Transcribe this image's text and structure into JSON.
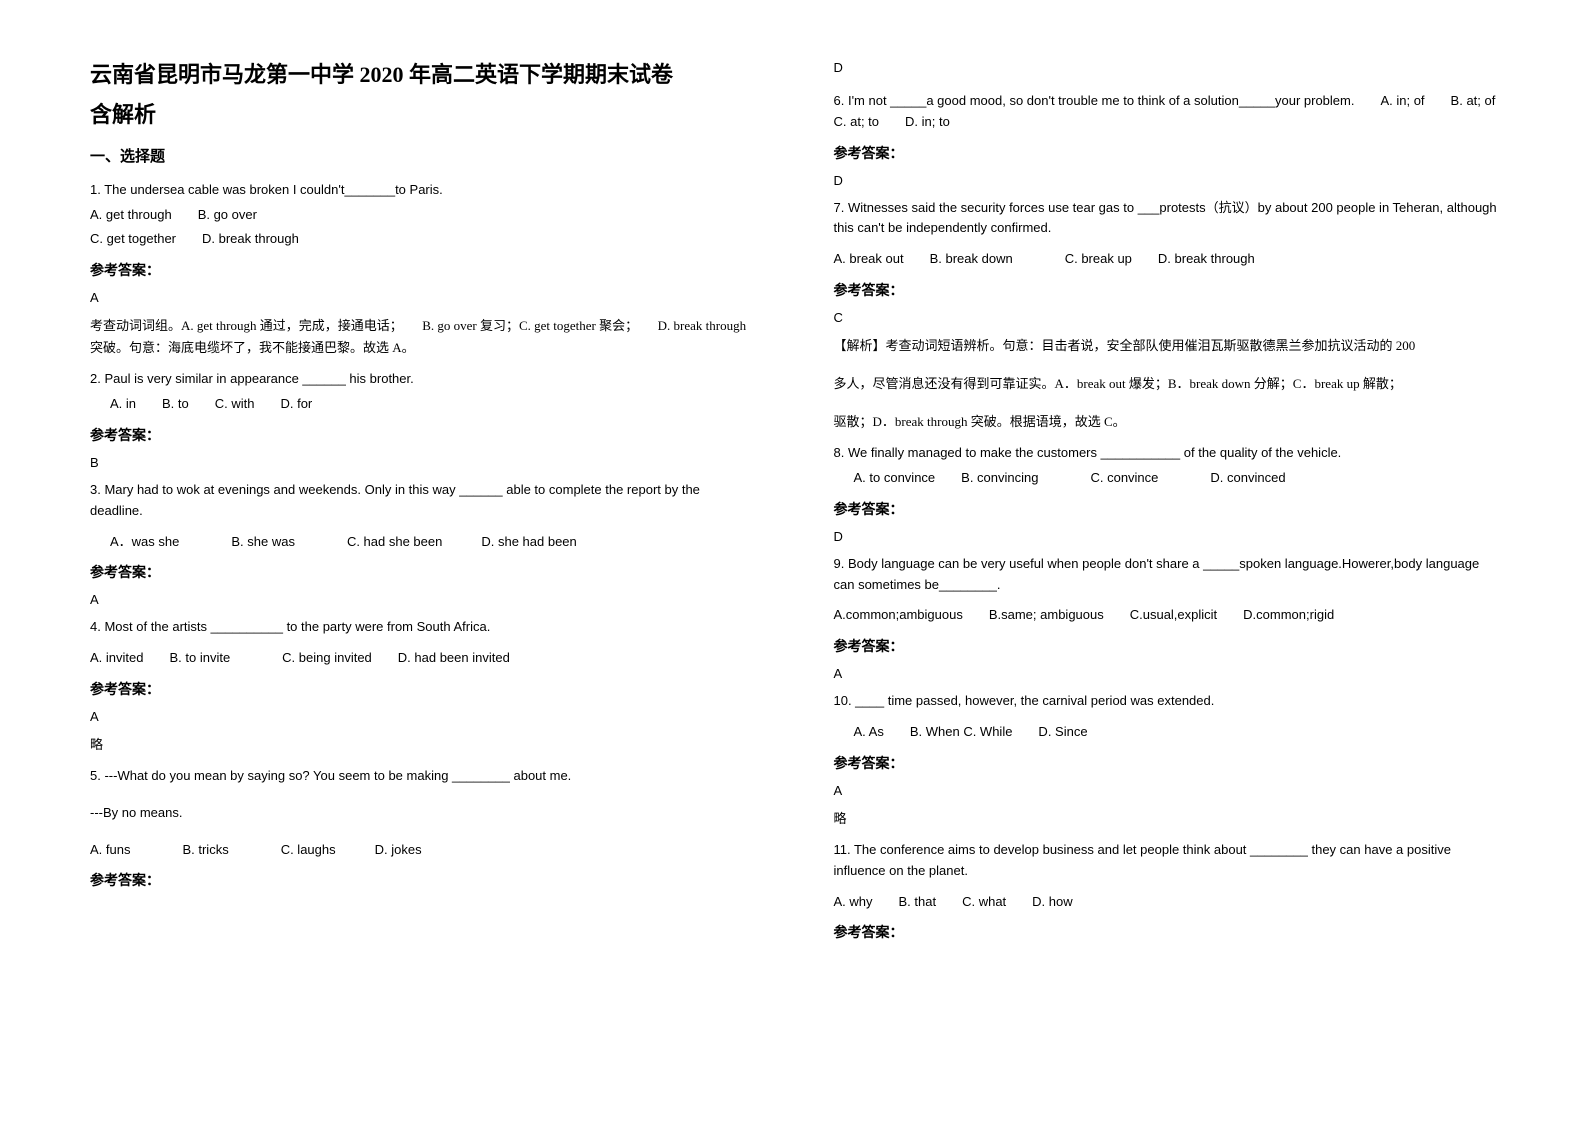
{
  "title_line1": "云南省昆明市马龙第一中学 2020 年高二英语下学期期末试卷",
  "title_line2": "含解析",
  "section1": "一、选择题",
  "q1": {
    "text": "1. The undersea cable was broken I couldn't_______to Paris.",
    "optA": "A. get through",
    "optB": "B. go over",
    "optC": "C. get together",
    "optD": "D. break through",
    "answer_label": "参考答案：",
    "answer": "A",
    "explanation": "考查动词词组。A. get through 通过，完成，接通电话；　　B. go over 复习；C. get together 聚会；　　D. break through 突破。句意：海底电缆坏了，我不能接通巴黎。故选 A。"
  },
  "q2": {
    "text": "2. Paul is very similar in appearance ______ his brother.",
    "options": "A. in　　B. to　　C. with　　D. for",
    "answer_label": "参考答案：",
    "answer": "B"
  },
  "q3": {
    "text": "3. Mary had to wok at evenings and weekends. Only in this way ______ able to complete the report by the deadline.",
    "options": "A．was she　　　　B. she was　　　　C. had she been　　　D. she had been",
    "answer_label": "参考答案：",
    "answer": "A"
  },
  "q4": {
    "text": "4. Most of the artists __________ to the party were from South Africa.",
    "options": "A. invited　　B. to invite　　　　C. being invited　　D. had been invited",
    "answer_label": "参考答案：",
    "answer": "A",
    "note": "略"
  },
  "q5": {
    "text": "5. ---What do you mean by saying so?  You seem to be making ________ about me.",
    "text2": "---By no means.",
    "options": "A. funs　　　　B. tricks　　　　C. laughs　　　D. jokes",
    "answer_label": "参考答案：",
    "answer": "D"
  },
  "q6": {
    "text": "6. I'm not _____a good mood, so don't trouble me to think of a solution_____your problem.　　A. in; of　　B. at; of　　C. at; to　　D. in; to",
    "answer_label": "参考答案：",
    "answer": "D"
  },
  "q7": {
    "text": "7. Witnesses said the security forces use tear gas to ___protests（抗议）by about 200 people in Teheran, although this can't be independently confirmed.",
    "options": "A. break out　　B. break down　　　　C. break up　　D. break through",
    "answer_label": "参考答案：",
    "answer": "C",
    "explanation1": "【解析】考查动词短语辨析。句意：目击者说，安全部队使用催泪瓦斯驱散德黑兰参加抗议活动的 200",
    "explanation2": "多人，尽管消息还没有得到可靠证实。A．break out 爆发；B．break down 分解；C．break up 解散；",
    "explanation3": "驱散；D．break through 突破。根据语境，故选 C。"
  },
  "q8": {
    "text": "8. We finally managed to make the customers ___________ of the quality of the vehicle.",
    "options": "A. to convince　　B. convincing　　　　C. convince　　　　D. convinced",
    "answer_label": "参考答案：",
    "answer": "D"
  },
  "q9": {
    "text": "9. Body language can be very useful when people don't share a _____spoken language.Howerer,body language can sometimes be________.",
    "options": "A.common;ambiguous　　B.same; ambiguous　　C.usual,explicit　　D.common;rigid",
    "answer_label": "参考答案：",
    "answer": "A"
  },
  "q10": {
    "text": "10. ____ time passed, however, the carnival period was extended.",
    "options": "A. As　　B. When  C. While　　D. Since",
    "answer_label": "参考答案：",
    "answer": "A",
    "note": "略"
  },
  "q11": {
    "text": "11. The conference aims to develop business and let people think about ________ they can have a positive influence on the planet.",
    "options": "A. why　　B. that　　C. what　　D. how",
    "answer_label": "参考答案："
  }
}
